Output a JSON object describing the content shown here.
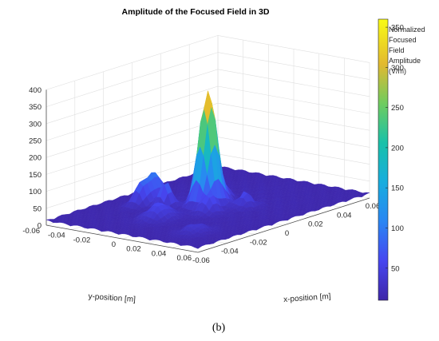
{
  "chart_data": {
    "type": "surface",
    "title": "Amplitude of the Focused Field in 3D",
    "xlabel": "x-position [m]",
    "ylabel": "y-position [m]",
    "zlabel": "",
    "xlim": [
      -0.06,
      0.06
    ],
    "ylim": [
      -0.06,
      0.06
    ],
    "zlim": [
      0,
      400
    ],
    "x_ticks": [
      "-0.06",
      "-0.04",
      "-0.02",
      "0",
      "0.02",
      "0.04",
      "0.06"
    ],
    "y_ticks": [
      "-0.06",
      "-0.04",
      "-0.02",
      "0",
      "0.02",
      "0.04",
      "0.06"
    ],
    "z_ticks": [
      "0",
      "50",
      "100",
      "150",
      "200",
      "250",
      "300",
      "350",
      "400"
    ],
    "grid": true,
    "colormap": "parula",
    "peak": {
      "x": 0.0,
      "y": 0.0,
      "z": 355
    },
    "colorbar": {
      "label_lines": [
        "Normalized",
        "Focused",
        "Field",
        "Amplitude",
        "(V/m)"
      ],
      "range": [
        10,
        360
      ],
      "ticks": [
        "50",
        "100",
        "150",
        "200",
        "250",
        "300",
        "350"
      ]
    },
    "caption": "(b)"
  }
}
